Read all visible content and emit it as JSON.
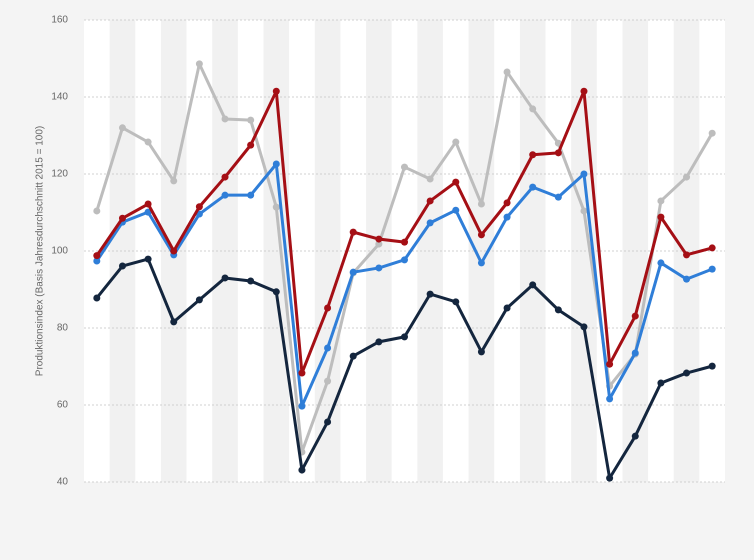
{
  "chart_data": {
    "type": "line",
    "y_label": "Produktionsindex (Basis Jahresdurchschnitt 2015 = 100)",
    "categories": [
      null,
      null,
      null,
      null,
      null,
      null,
      null,
      null,
      null,
      null,
      null,
      null,
      null,
      null,
      null,
      null,
      null,
      null,
      null,
      null,
      null,
      null,
      null,
      null,
      null
    ],
    "series": [
      {
        "color": "#bdbdbd",
        "values": [
          110.4,
          132,
          128.3,
          118.2,
          148.6,
          134.3,
          134,
          111.4,
          47.8,
          66.2,
          94.3,
          101.8,
          121.8,
          118.7,
          128.3,
          112.2,
          146.5,
          136.9,
          128,
          110.4,
          64.9,
          73.2,
          113,
          119.2,
          130.6
        ]
      },
      {
        "color": "#2f7ed8",
        "values": [
          97.4,
          107.5,
          110.1,
          99,
          109.6,
          114.5,
          114.5,
          122.6,
          59.7,
          74.8,
          94.5,
          95.6,
          97.7,
          107.3,
          110.6,
          96.9,
          108.8,
          116.6,
          114,
          120,
          61.6,
          73.5,
          96.9,
          92.7,
          95.3
        ]
      },
      {
        "color": "#a50f15",
        "values": [
          98.8,
          108.5,
          112.2,
          100,
          111.5,
          119.2,
          127.5,
          141.5,
          68.3,
          85.2,
          104.9,
          103.1,
          102.3,
          113,
          117.9,
          104.2,
          112.5,
          125,
          125.5,
          141.5,
          70.6,
          83.1,
          108.8,
          99,
          100.8
        ]
      },
      {
        "color": "#14263e",
        "values": [
          87.8,
          96.1,
          97.9,
          81.6,
          87.3,
          93,
          92.2,
          89.4,
          43.1,
          55.6,
          72.7,
          76.4,
          77.7,
          88.8,
          86.8,
          73.8,
          85.2,
          91.2,
          84.7,
          80.3,
          41,
          51.9,
          65.7,
          68.3,
          70.1
        ]
      }
    ],
    "ylim": [
      40,
      160
    ],
    "yticks": [
      40,
      60,
      80,
      100,
      120,
      140,
      160
    ],
    "grid": true
  }
}
